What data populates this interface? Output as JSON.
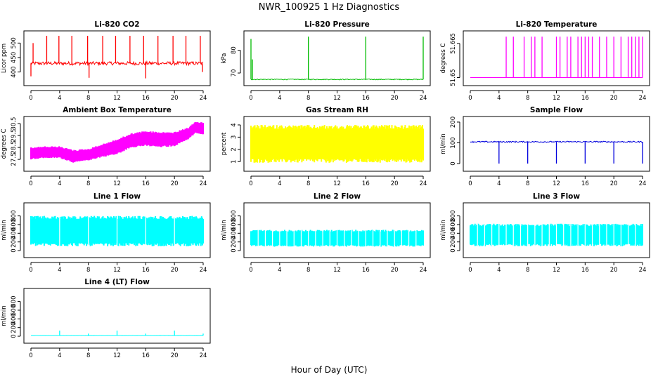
{
  "page": {
    "title": "NWR_100925  1 Hz Diagnostics",
    "xlabel": "Hour of Day (UTC)"
  },
  "chart_data": [
    {
      "type": "line",
      "title": "Li-820 CO2",
      "ylabel": "Licor ppm",
      "color": "#ff0000",
      "xlim": [
        0,
        24
      ],
      "xticks": [
        0,
        4,
        8,
        12,
        16,
        20,
        24
      ],
      "ylim": [
        365,
        530
      ],
      "yticks": [
        400,
        450,
        500
      ],
      "baseline": 430,
      "noise": 6,
      "spikes": [
        {
          "x": 0.0,
          "y": 385
        },
        {
          "x": 0.3,
          "y": 500
        },
        {
          "x": 2.2,
          "y": 525
        },
        {
          "x": 3.9,
          "y": 525
        },
        {
          "x": 5.7,
          "y": 525
        },
        {
          "x": 7.9,
          "y": 525
        },
        {
          "x": 8.1,
          "y": 380
        },
        {
          "x": 10.0,
          "y": 525
        },
        {
          "x": 11.8,
          "y": 525
        },
        {
          "x": 13.8,
          "y": 525
        },
        {
          "x": 15.7,
          "y": 525
        },
        {
          "x": 16.0,
          "y": 378
        },
        {
          "x": 17.7,
          "y": 525
        },
        {
          "x": 19.8,
          "y": 525
        },
        {
          "x": 21.6,
          "y": 525
        },
        {
          "x": 23.6,
          "y": 525
        },
        {
          "x": 23.9,
          "y": 400
        }
      ]
    },
    {
      "type": "line",
      "title": "Li-820 Pressure",
      "ylabel": "kPa",
      "color": "#00bb00",
      "xlim": [
        0,
        24
      ],
      "xticks": [
        0,
        4,
        8,
        12,
        16,
        20,
        24
      ],
      "ylim": [
        66,
        87
      ],
      "yticks": [
        70,
        80
      ],
      "baseline": 67.2,
      "noise": 0.2,
      "spikes": [
        {
          "x": 0.0,
          "y": 85
        },
        {
          "x": 0.2,
          "y": 76
        },
        {
          "x": 8.0,
          "y": 86
        },
        {
          "x": 16.0,
          "y": 86
        },
        {
          "x": 24.0,
          "y": 86
        }
      ]
    },
    {
      "type": "line",
      "title": "Li-820 Temperature",
      "ylabel": "degrees C",
      "color": "#ff00ff",
      "xlim": [
        0,
        24
      ],
      "xticks": [
        0,
        4,
        8,
        12,
        16,
        20,
        24
      ],
      "ylim": [
        51.648,
        51.669
      ],
      "yticks": [
        51.65,
        51.665
      ],
      "baseline": 51.65,
      "noise": 0,
      "spikes": [
        {
          "x": 5,
          "y": 51.668
        },
        {
          "x": 6,
          "y": 51.668
        },
        {
          "x": 7.5,
          "y": 51.668
        },
        {
          "x": 8.5,
          "y": 51.668
        },
        {
          "x": 9,
          "y": 51.668
        },
        {
          "x": 10,
          "y": 51.668
        },
        {
          "x": 12,
          "y": 51.668
        },
        {
          "x": 12.5,
          "y": 51.668
        },
        {
          "x": 13.5,
          "y": 51.668
        },
        {
          "x": 14,
          "y": 51.668
        },
        {
          "x": 15,
          "y": 51.668
        },
        {
          "x": 15.5,
          "y": 51.668
        },
        {
          "x": 16,
          "y": 51.668
        },
        {
          "x": 16.5,
          "y": 51.668
        },
        {
          "x": 17,
          "y": 51.668
        },
        {
          "x": 18,
          "y": 51.668
        },
        {
          "x": 19,
          "y": 51.668
        },
        {
          "x": 20,
          "y": 51.668
        },
        {
          "x": 21,
          "y": 51.668
        },
        {
          "x": 22,
          "y": 51.668
        },
        {
          "x": 22.5,
          "y": 51.668
        },
        {
          "x": 23,
          "y": 51.668
        },
        {
          "x": 23.5,
          "y": 51.668
        },
        {
          "x": 24,
          "y": 51.668
        }
      ]
    },
    {
      "type": "area",
      "title": "Ambient Box Temperature",
      "ylabel": "degrees C",
      "color": "#ff00ff",
      "xlim": [
        0,
        24
      ],
      "xticks": [
        0,
        4,
        8,
        12,
        16,
        20,
        24
      ],
      "ylim": [
        26.8,
        30.8
      ],
      "yticks": [
        27.5,
        28.5,
        29.5,
        30.5
      ],
      "x": [
        0,
        2,
        4,
        6,
        8,
        10,
        12,
        14,
        16,
        18,
        20,
        22,
        23,
        24
      ],
      "low": [
        27.5,
        27.6,
        27.6,
        27.2,
        27.4,
        27.7,
        27.9,
        28.5,
        28.6,
        28.5,
        28.6,
        29.2,
        29.7,
        29.5
      ],
      "high": [
        28.5,
        28.6,
        28.6,
        28.3,
        28.4,
        28.8,
        29.2,
        29.7,
        29.9,
        29.8,
        29.8,
        30.2,
        30.7,
        30.6
      ]
    },
    {
      "type": "area",
      "title": "Gas Stream RH",
      "ylabel": "percent",
      "color": "#ffff00",
      "xlim": [
        0,
        24
      ],
      "xticks": [
        0,
        4,
        8,
        12,
        16,
        20,
        24
      ],
      "ylim": [
        0.5,
        4.4
      ],
      "yticks": [
        1,
        2,
        3,
        4
      ],
      "x": [
        0,
        24
      ],
      "low": [
        0.9,
        0.9
      ],
      "high": [
        4.0,
        4.0
      ]
    },
    {
      "type": "line",
      "title": "Sample Flow",
      "ylabel": "ml/min",
      "color": "#0000dd",
      "xlim": [
        0,
        24
      ],
      "xticks": [
        0,
        4,
        8,
        12,
        16,
        20,
        24
      ],
      "ylim": [
        -20,
        210
      ],
      "yticks": [
        0,
        100,
        200
      ],
      "baseline": 105,
      "noise": 3,
      "spikes": [
        {
          "x": 4,
          "y": 0
        },
        {
          "x": 8,
          "y": 0
        },
        {
          "x": 12,
          "y": 0
        },
        {
          "x": 16,
          "y": 0
        },
        {
          "x": 20,
          "y": 0
        },
        {
          "x": 24,
          "y": 0
        }
      ]
    },
    {
      "type": "area",
      "title": "Line 1 Flow",
      "ylabel": "ml/min",
      "color": "#00ffff",
      "xlim": [
        0,
        24
      ],
      "xticks": [
        0,
        4,
        8,
        12,
        16,
        20,
        24
      ],
      "ylim": [
        -80,
        1020
      ],
      "yticks": [
        0,
        200,
        400,
        600,
        800
      ],
      "x": [
        0,
        24
      ],
      "low": [
        100,
        100
      ],
      "high": [
        800,
        800
      ],
      "gaps": [
        4,
        8,
        12,
        16,
        20
      ]
    },
    {
      "type": "area",
      "title": "Line 2 Flow",
      "ylabel": "ml/min",
      "color": "#00ffff",
      "xlim": [
        0,
        24
      ],
      "xticks": [
        0,
        4,
        8,
        12,
        16,
        20,
        24
      ],
      "ylim": [
        -80,
        1020
      ],
      "yticks": [
        0,
        200,
        400,
        600,
        800
      ],
      "x": [
        0,
        24
      ],
      "low": [
        90,
        90
      ],
      "high": [
        480,
        480
      ],
      "gaps": [
        1,
        2,
        3,
        4,
        5,
        6,
        7,
        8,
        9,
        10,
        11,
        12,
        13,
        14,
        15,
        16,
        17,
        18,
        19,
        20,
        21,
        22,
        23
      ]
    },
    {
      "type": "area",
      "title": "Line 3 Flow",
      "ylabel": "ml/min",
      "color": "#00ffff",
      "xlim": [
        0,
        24
      ],
      "xticks": [
        0,
        4,
        8,
        12,
        16,
        20,
        24
      ],
      "ylim": [
        -80,
        1020
      ],
      "yticks": [
        0,
        200,
        400,
        600,
        800
      ],
      "x": [
        0,
        24
      ],
      "low": [
        100,
        100
      ],
      "high": [
        620,
        620
      ],
      "gaps": [
        1,
        2,
        3,
        4,
        5,
        6,
        7,
        8,
        9,
        10,
        11,
        12,
        13,
        14,
        15,
        16,
        17,
        18,
        19,
        20,
        21,
        22,
        23
      ]
    },
    {
      "type": "line",
      "title": "Line 4 (LT) Flow",
      "ylabel": "ml/min",
      "color": "#00ffff",
      "xlim": [
        0,
        24
      ],
      "xticks": [
        0,
        4,
        8,
        12,
        16,
        20,
        24
      ],
      "ylim": [
        -80,
        1020
      ],
      "yticks": [
        0,
        200,
        400,
        600,
        800
      ],
      "baseline": 15,
      "noise": 3,
      "spikes": [
        {
          "x": 4,
          "y": 130
        },
        {
          "x": 8,
          "y": 60
        },
        {
          "x": 12,
          "y": 130
        },
        {
          "x": 16,
          "y": 60
        },
        {
          "x": 20,
          "y": 130
        },
        {
          "x": 24,
          "y": 60
        }
      ]
    }
  ]
}
